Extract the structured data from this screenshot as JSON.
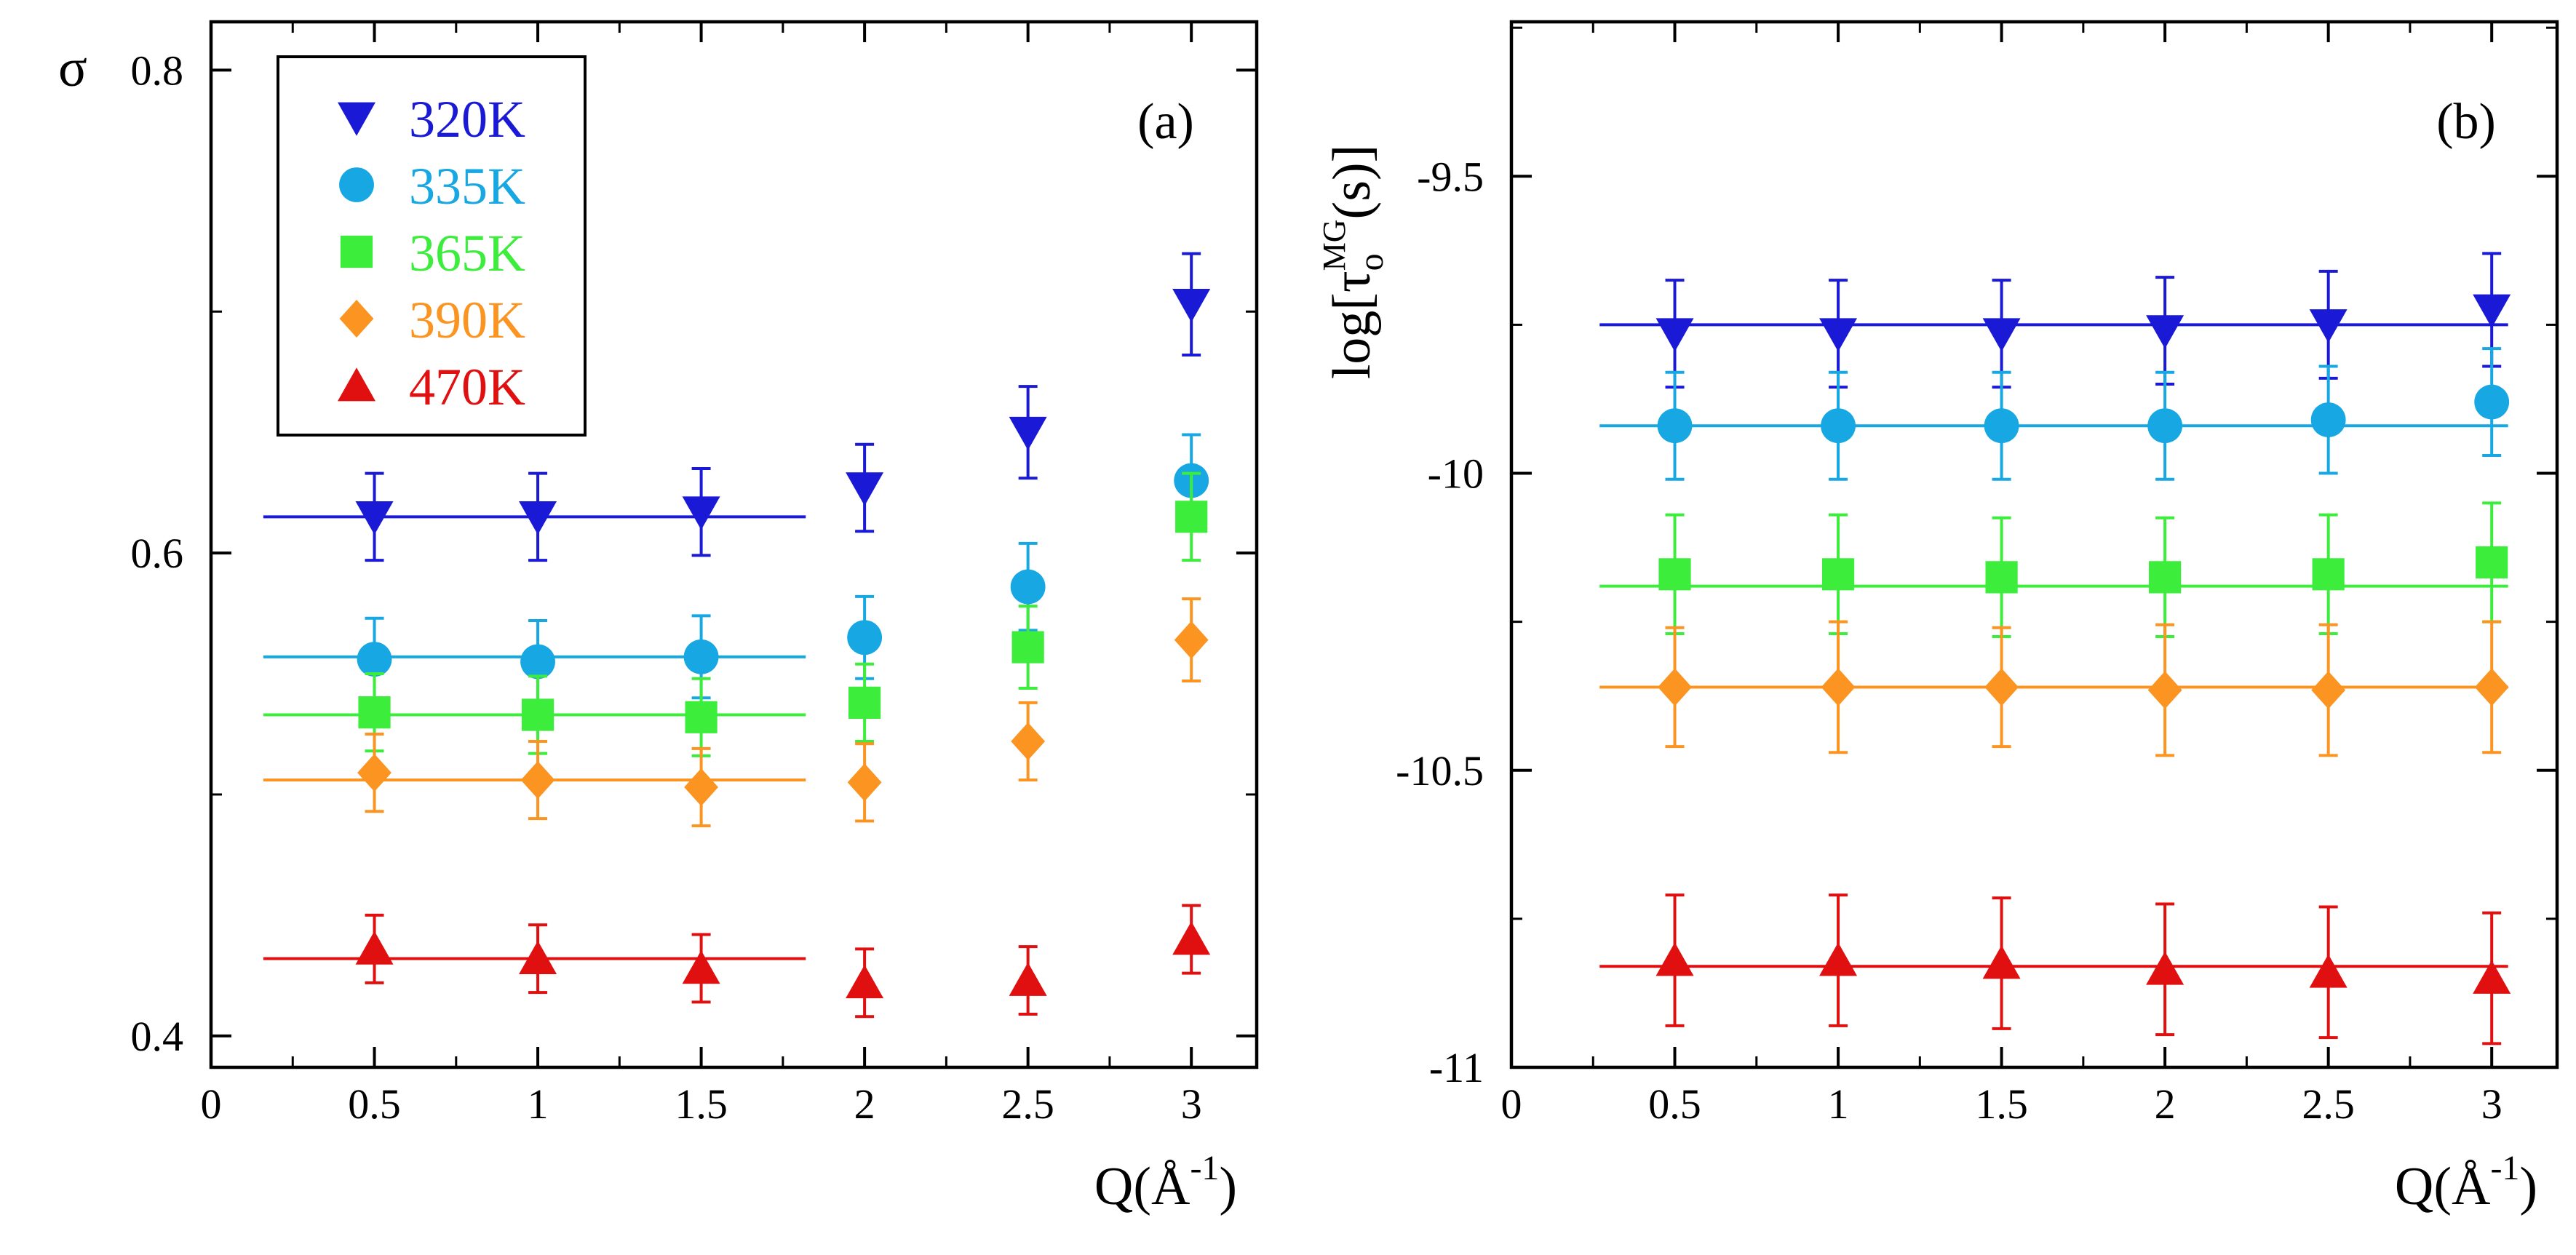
{
  "chart_data": [
    {
      "type": "scatter",
      "panel_label": "(a)",
      "ylabel": "σ",
      "xlabel": "Q(Å",
      "xlabel_sup": "-1",
      "xlabel_tail": ")",
      "xlim": [
        0,
        3.2
      ],
      "ylim": [
        0.387,
        0.82
      ],
      "x_ticks": [
        0,
        0.5,
        1,
        1.5,
        2,
        2.5,
        3
      ],
      "x_tick_labels": [
        "0",
        "0.5",
        "1",
        "1.5",
        "2",
        "2.5",
        "3"
      ],
      "y_ticks": [
        0.4,
        0.6,
        0.8
      ],
      "y_tick_labels": [
        "0.4",
        "0.6",
        "0.8"
      ],
      "fit_range": [
        0.16,
        1.82
      ],
      "legend": {
        "placement": "top-left"
      },
      "series": [
        {
          "name": "320K",
          "marker": "triangle-down",
          "color": "#1a1ad6",
          "x": [
            0.5,
            1,
            1.5,
            2,
            2.5,
            3
          ],
          "y": [
            0.615,
            0.615,
            0.617,
            0.627,
            0.65,
            0.703
          ],
          "err": [
            0.018,
            0.018,
            0.018,
            0.018,
            0.019,
            0.021
          ],
          "fit": 0.615
        },
        {
          "name": "335K",
          "marker": "circle",
          "color": "#17a8e3",
          "x": [
            0.5,
            1,
            1.5,
            2,
            2.5,
            3
          ],
          "y": [
            0.556,
            0.555,
            0.557,
            0.565,
            0.586,
            0.63
          ],
          "err": [
            0.017,
            0.017,
            0.017,
            0.017,
            0.018,
            0.019
          ],
          "fit": 0.557
        },
        {
          "name": "365K",
          "marker": "square",
          "color": "#3ced3c",
          "x": [
            0.5,
            1,
            1.5,
            2,
            2.5,
            3
          ],
          "y": [
            0.534,
            0.533,
            0.532,
            0.538,
            0.561,
            0.615
          ],
          "err": [
            0.016,
            0.016,
            0.016,
            0.016,
            0.017,
            0.018
          ],
          "fit": 0.533
        },
        {
          "name": "390K",
          "marker": "diamond",
          "color": "#fb9420",
          "x": [
            0.5,
            1,
            1.5,
            2,
            2.5,
            3
          ],
          "y": [
            0.509,
            0.506,
            0.503,
            0.505,
            0.522,
            0.564
          ],
          "err": [
            0.016,
            0.016,
            0.016,
            0.016,
            0.016,
            0.017
          ],
          "fit": 0.506
        },
        {
          "name": "470K",
          "marker": "triangle-up",
          "color": "#e01010",
          "x": [
            0.5,
            1,
            1.5,
            2,
            2.5,
            3
          ],
          "y": [
            0.436,
            0.432,
            0.428,
            0.422,
            0.423,
            0.44
          ],
          "err": [
            0.014,
            0.014,
            0.014,
            0.014,
            0.014,
            0.014
          ],
          "fit": 0.432
        }
      ]
    },
    {
      "type": "scatter",
      "panel_label": "(b)",
      "ylabel": "log[τ",
      "ylabel_sub": "o",
      "ylabel_sup": "MG",
      "ylabel_tail": "(s)]",
      "xlabel": "Q(Å",
      "xlabel_sup": "-1",
      "xlabel_tail": ")",
      "xlim": [
        0,
        3.2
      ],
      "ylim": [
        -11,
        -9.24
      ],
      "x_ticks": [
        0,
        0.5,
        1,
        1.5,
        2,
        2.5,
        3
      ],
      "x_tick_labels": [
        "0",
        "0.5",
        "1",
        "1.5",
        "2",
        "2.5",
        "3"
      ],
      "y_ticks": [
        -11,
        -10.5,
        -10,
        -9.5
      ],
      "y_tick_labels": [
        "-11",
        "-10.5",
        "-10",
        "-9.5"
      ],
      "fit_range": [
        0.27,
        3.05
      ],
      "series": [
        {
          "name": "320K",
          "marker": "triangle-down",
          "color": "#1a1ad6",
          "x": [
            0.5,
            1,
            1.5,
            2,
            2.5,
            3
          ],
          "y": [
            -9.765,
            -9.765,
            -9.765,
            -9.76,
            -9.75,
            -9.725
          ],
          "err": [
            0.09,
            0.09,
            0.09,
            0.09,
            0.09,
            0.095
          ],
          "fit": -9.75
        },
        {
          "name": "335K",
          "marker": "circle",
          "color": "#17a8e3",
          "x": [
            0.5,
            1,
            1.5,
            2,
            2.5,
            3
          ],
          "y": [
            -9.92,
            -9.92,
            -9.92,
            -9.92,
            -9.91,
            -9.88
          ],
          "err": [
            0.09,
            0.09,
            0.09,
            0.09,
            0.09,
            0.09
          ],
          "fit": -9.92
        },
        {
          "name": "365K",
          "marker": "square",
          "color": "#3ced3c",
          "x": [
            0.5,
            1,
            1.5,
            2,
            2.5,
            3
          ],
          "y": [
            -10.17,
            -10.17,
            -10.175,
            -10.175,
            -10.17,
            -10.15
          ],
          "err": [
            0.1,
            0.1,
            0.1,
            0.1,
            0.1,
            0.1
          ],
          "fit": -10.19
        },
        {
          "name": "390K",
          "marker": "diamond",
          "color": "#fb9420",
          "x": [
            0.5,
            1,
            1.5,
            2,
            2.5,
            3
          ],
          "y": [
            -10.36,
            -10.36,
            -10.36,
            -10.365,
            -10.365,
            -10.36
          ],
          "err": [
            0.1,
            0.11,
            0.1,
            0.11,
            0.11,
            0.11
          ],
          "fit": -10.36
        },
        {
          "name": "470K",
          "marker": "triangle-up",
          "color": "#e01010",
          "x": [
            0.5,
            1,
            1.5,
            2,
            2.5,
            3
          ],
          "y": [
            -10.82,
            -10.82,
            -10.825,
            -10.835,
            -10.84,
            -10.85
          ],
          "err": [
            0.11,
            0.11,
            0.11,
            0.11,
            0.11,
            0.11
          ],
          "fit": -10.83
        }
      ]
    }
  ]
}
